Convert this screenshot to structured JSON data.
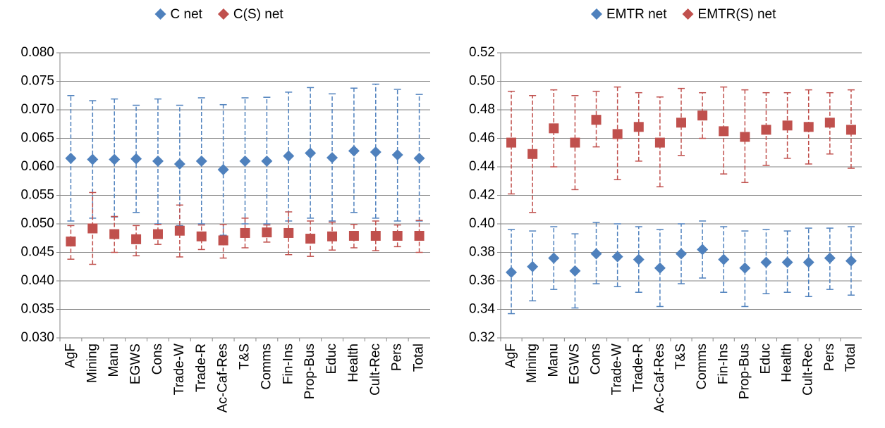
{
  "chart_data": [
    {
      "type": "errorbar-scatter",
      "legend": "top",
      "grid": true,
      "categories": [
        "AgF",
        "Mining",
        "Manu",
        "EGWS",
        "Cons",
        "Trade-W",
        "Trade-R",
        "Ac-Caf-Res",
        "T&S",
        "Comms",
        "Fin-Ins",
        "Prop-Bus",
        "Educ",
        "Health",
        "Cult-Rec",
        "Pers",
        "Total"
      ],
      "ylim": [
        0.03,
        0.08
      ],
      "yticks": [
        {
          "value": 0.03,
          "label": "0.030"
        },
        {
          "value": 0.035,
          "label": "0.035"
        },
        {
          "value": 0.04,
          "label": "0.040"
        },
        {
          "value": 0.045,
          "label": "0.045"
        },
        {
          "value": 0.05,
          "label": "0.050"
        },
        {
          "value": 0.055,
          "label": "0.055"
        },
        {
          "value": 0.06,
          "label": "0.060"
        },
        {
          "value": 0.065,
          "label": "0.065"
        },
        {
          "value": 0.07,
          "label": "0.070"
        },
        {
          "value": 0.075,
          "label": "0.075"
        },
        {
          "value": 0.08,
          "label": "0.080"
        }
      ],
      "series": [
        {
          "name": "C net",
          "color": "#4f81bd",
          "marker": "diamond",
          "values": [
            0.0615,
            0.0613,
            0.0613,
            0.0614,
            0.061,
            0.0605,
            0.061,
            0.0595,
            0.061,
            0.061,
            0.0619,
            0.0624,
            0.0616,
            0.0628,
            0.0626,
            0.0621,
            0.0615
          ],
          "lower": [
            0.0505,
            0.051,
            0.0512,
            0.052,
            0.05,
            0.0497,
            0.05,
            0.048,
            0.05,
            0.05,
            0.0505,
            0.051,
            0.0505,
            0.052,
            0.051,
            0.0505,
            0.0505
          ],
          "upper": [
            0.0725,
            0.0716,
            0.0719,
            0.0708,
            0.0719,
            0.0708,
            0.0721,
            0.0709,
            0.0721,
            0.0722,
            0.0731,
            0.0739,
            0.0728,
            0.0738,
            0.0745,
            0.0736,
            0.0727
          ]
        },
        {
          "name": "C(S) net",
          "color": "#c0504d",
          "marker": "square",
          "values": [
            0.0469,
            0.0492,
            0.0482,
            0.0473,
            0.0482,
            0.0488,
            0.0478,
            0.0471,
            0.0484,
            0.0485,
            0.0484,
            0.0474,
            0.0478,
            0.0479,
            0.0479,
            0.0479,
            0.0479
          ],
          "lower": [
            0.0438,
            0.0429,
            0.045,
            0.0444,
            0.0464,
            0.0442,
            0.0455,
            0.044,
            0.0458,
            0.0468,
            0.0446,
            0.0443,
            0.0454,
            0.0458,
            0.0453,
            0.046,
            0.045
          ],
          "upper": [
            0.0497,
            0.0555,
            0.0513,
            0.0497,
            0.0499,
            0.0533,
            0.0498,
            0.0499,
            0.051,
            0.0498,
            0.0521,
            0.0505,
            0.0503,
            0.0499,
            0.0505,
            0.0498,
            0.0506
          ]
        }
      ]
    },
    {
      "type": "errorbar-scatter",
      "legend": "top",
      "grid": true,
      "categories": [
        "AgF",
        "Mining",
        "Manu",
        "EGWS",
        "Cons",
        "Trade-W",
        "Trade-R",
        "Ac-Caf-Res",
        "T&S",
        "Comms",
        "Fin-Ins",
        "Prop-Bus",
        "Educ",
        "Health",
        "Cult-Rec",
        "Pers",
        "Total"
      ],
      "ylim": [
        0.32,
        0.52
      ],
      "yticks": [
        0.32,
        0.34,
        0.36,
        0.38,
        {
          "value": 0.4,
          "label": "0.40"
        },
        0.42,
        0.44,
        0.46,
        0.48,
        {
          "value": 0.5,
          "label": "0.50"
        },
        0.52
      ],
      "series": [
        {
          "name": "EMTR net",
          "color": "#4f81bd",
          "marker": "diamond",
          "values": [
            0.366,
            0.37,
            0.376,
            0.367,
            0.379,
            0.377,
            0.375,
            0.369,
            0.379,
            0.382,
            0.375,
            0.369,
            0.373,
            0.373,
            0.373,
            0.376,
            0.374
          ],
          "lower": [
            0.337,
            0.346,
            0.354,
            0.341,
            0.358,
            0.356,
            0.352,
            0.342,
            0.358,
            0.362,
            0.352,
            0.342,
            0.351,
            0.352,
            0.349,
            0.354,
            0.35
          ],
          "upper": [
            0.396,
            0.395,
            0.398,
            0.393,
            0.401,
            0.4,
            0.398,
            0.396,
            0.4,
            0.402,
            0.398,
            0.395,
            0.396,
            0.395,
            0.397,
            0.397,
            0.398
          ]
        },
        {
          "name": "EMTR(S) net",
          "color": "#c0504d",
          "marker": "square",
          "values": [
            0.457,
            0.449,
            0.467,
            0.457,
            0.473,
            0.463,
            0.468,
            0.457,
            0.471,
            0.476,
            0.465,
            0.461,
            0.466,
            0.469,
            0.468,
            0.471,
            0.466
          ],
          "lower": [
            0.421,
            0.408,
            0.44,
            0.424,
            0.454,
            0.431,
            0.444,
            0.426,
            0.448,
            0.46,
            0.435,
            0.429,
            0.441,
            0.446,
            0.442,
            0.449,
            0.439
          ],
          "upper": [
            0.493,
            0.49,
            0.494,
            0.49,
            0.493,
            0.496,
            0.492,
            0.489,
            0.495,
            0.492,
            0.496,
            0.494,
            0.492,
            0.492,
            0.494,
            0.492,
            0.494
          ]
        }
      ]
    }
  ]
}
